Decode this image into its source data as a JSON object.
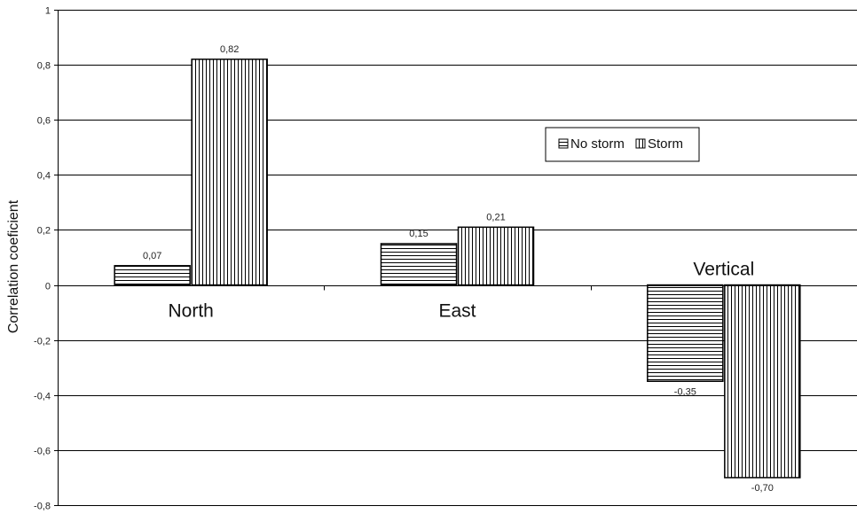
{
  "chart_data": {
    "type": "bar",
    "title": "",
    "xlabel": "",
    "ylabel": "Correlation coeficient",
    "ylim": [
      -0.8,
      1
    ],
    "yticks": [
      1,
      0.8,
      0.6,
      0.4,
      0.2,
      0,
      -0.2,
      -0.4,
      -0.6,
      -0.8
    ],
    "ytick_labels": [
      "1",
      "0,8",
      "0,6",
      "0,4",
      "0,2",
      "0",
      "-0,2",
      "-0,4",
      "-0,6",
      "-0,8"
    ],
    "grid": true,
    "legend_position": "upper-right",
    "categories": [
      "North",
      "East",
      "Vertical"
    ],
    "series": [
      {
        "name": "No storm",
        "pattern": "horizontal-lines",
        "values": [
          0.07,
          0.15,
          -0.35
        ],
        "labels": [
          "0,07",
          "0,15",
          "-0,35"
        ]
      },
      {
        "name": "Storm",
        "pattern": "vertical-lines",
        "values": [
          0.82,
          0.21,
          -0.7
        ],
        "labels": [
          "0,82",
          "0,21",
          "-0,70"
        ]
      }
    ],
    "colors": {
      "bar_stroke": "#000000",
      "gridline": "#000000",
      "label_text": "#222222"
    }
  }
}
